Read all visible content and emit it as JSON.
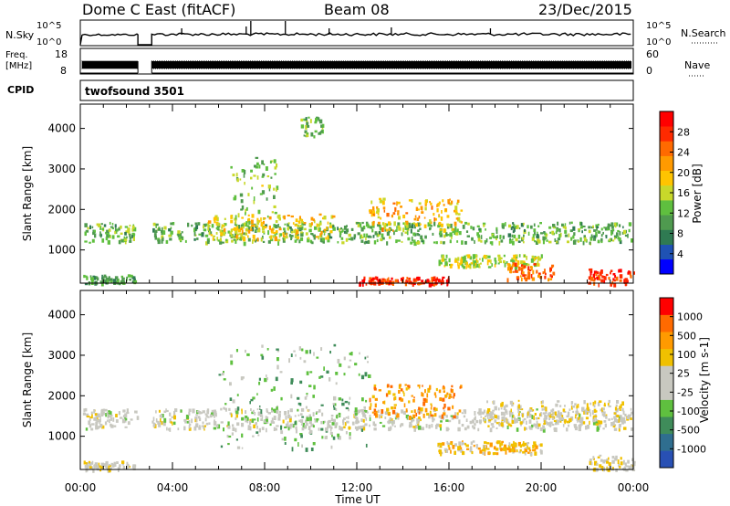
{
  "header": {
    "title": "Dome C East (fitACF)",
    "beam": "Beam 08",
    "date": "23/Dec/2015"
  },
  "strips": {
    "nsky": {
      "label": "N.Sky",
      "ticks_left": [
        "10^5",
        "10^0"
      ],
      "right_label": "N.Search",
      "ticks_right": [
        "10^5",
        "10^0"
      ]
    },
    "freq": {
      "label_lines": [
        "Freq.",
        "[MHz]"
      ],
      "ticks_left": [
        "18",
        "8"
      ],
      "right_label": "Nave",
      "ticks_right": [
        "60",
        "0"
      ]
    },
    "cpid": {
      "label": "CPID",
      "program": "twofsound 3501"
    }
  },
  "panels": {
    "power": {
      "ylabel": "Slant Range [km]",
      "yticks": [
        "4000",
        "3000",
        "2000",
        "1000"
      ],
      "colorbar_label": "Power [dB]",
      "colorbar_ticks": [
        "28",
        "24",
        "20",
        "16",
        "12",
        "8",
        "4"
      ],
      "colorbar_colors": [
        "#0000ff",
        "#1f52b4",
        "#2f7a52",
        "#4f9a4f",
        "#5fbf3f",
        "#c8d82a",
        "#ffc400",
        "#ff9a00",
        "#ff6a00",
        "#ff2a00",
        "#ff0000"
      ]
    },
    "velocity": {
      "ylabel": "Slant Range [km]",
      "yticks": [
        "4000",
        "3000",
        "2000",
        "1000"
      ],
      "colorbar_label": "Velocity [m s-1]",
      "colorbar_ticks": [
        "1000",
        "500",
        "100",
        "25",
        "-25",
        "-100",
        "-500",
        "-1000"
      ],
      "colorbar_colors": [
        "#2850b4",
        "#2f6e8f",
        "#3f8c5a",
        "#5fc03f",
        "#c8c8c0",
        "#c8c8c0",
        "#f0c000",
        "#ff9a00",
        "#ff6a00",
        "#ff0000"
      ]
    }
  },
  "xaxis": {
    "ticks": [
      "00:00",
      "04:00",
      "08:00",
      "12:00",
      "16:00",
      "20:00",
      "00:00"
    ],
    "label": "Time UT"
  },
  "chart_data": [
    {
      "type": "heatmap",
      "title": "Power",
      "x_unit": "hours UT",
      "xlim": [
        0,
        24
      ],
      "ylim": [
        180,
        4600
      ],
      "y_unit": "km",
      "value_range": [
        0,
        32
      ],
      "value_unit": "dB",
      "data_gap_hours": [
        2.5,
        3.1
      ],
      "features": [
        {
          "start_h": 0.1,
          "end_h": 23.9,
          "range_km": [
            1200,
            1700
          ],
          "level": 12
        },
        {
          "start_h": 5.5,
          "end_h": 11.0,
          "range_km": [
            1300,
            1900
          ],
          "level": 18
        },
        {
          "start_h": 6.5,
          "end_h": 8.5,
          "range_km": [
            1900,
            3300
          ],
          "level": 14
        },
        {
          "start_h": 12.5,
          "end_h": 16.5,
          "range_km": [
            1500,
            2300
          ],
          "level": 20
        },
        {
          "start_h": 15.5,
          "end_h": 20.0,
          "range_km": [
            600,
            900
          ],
          "level": 16
        },
        {
          "start_h": 18.5,
          "end_h": 20.5,
          "range_km": [
            300,
            700
          ],
          "level": 24
        },
        {
          "start_h": 12.0,
          "end_h": 16.0,
          "range_km": [
            180,
            350
          ],
          "level": 28
        },
        {
          "start_h": 22.0,
          "end_h": 24.0,
          "range_km": [
            180,
            550
          ],
          "level": 28
        },
        {
          "start_h": 0.1,
          "end_h": 2.4,
          "range_km": [
            180,
            400
          ],
          "level": 10
        },
        {
          "start_h": 9.5,
          "end_h": 10.5,
          "range_km": [
            3800,
            4300
          ],
          "level": 12
        }
      ]
    },
    {
      "type": "heatmap",
      "title": "Velocity",
      "x_unit": "hours UT",
      "xlim": [
        0,
        24
      ],
      "ylim": [
        180,
        4600
      ],
      "y_unit": "km",
      "value_range": [
        -1000,
        1000
      ],
      "value_unit": "m s-1",
      "data_gap_hours": [
        2.5,
        3.1
      ],
      "features": [
        {
          "start_h": 0.1,
          "end_h": 23.9,
          "range_km": [
            1200,
            1700
          ],
          "level": 0
        },
        {
          "start_h": 6.0,
          "end_h": 12.5,
          "range_km": [
            700,
            3300
          ],
          "level": -300
        },
        {
          "start_h": 12.5,
          "end_h": 16.5,
          "range_km": [
            1500,
            2300
          ],
          "level": 500
        },
        {
          "start_h": 15.5,
          "end_h": 20.0,
          "range_km": [
            600,
            900
          ],
          "level": 300
        },
        {
          "start_h": 17.5,
          "end_h": 23.5,
          "range_km": [
            1300,
            1900
          ],
          "level": 150
        },
        {
          "start_h": 0.1,
          "end_h": 2.4,
          "range_km": [
            180,
            400
          ],
          "level": 100
        },
        {
          "start_h": 22.0,
          "end_h": 24.0,
          "range_km": [
            180,
            550
          ],
          "level": 100
        }
      ]
    }
  ]
}
